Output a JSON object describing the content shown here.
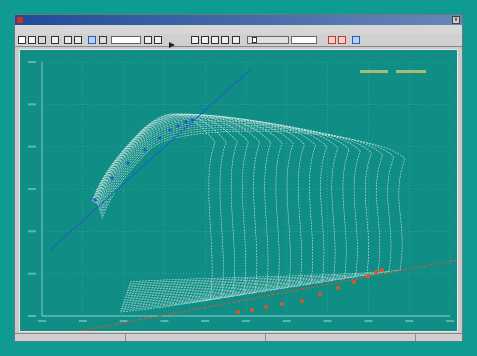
{
  "colors": {
    "desktop": "#0f9a92",
    "plot_bg": "#108d85",
    "grid": "#42b3ab",
    "curve": "#e8f2f0",
    "blue_marker": "#1e5fc4",
    "red_marker": "#e0542c",
    "legend_text": "#d8cd6b"
  },
  "window": {
    "close_glyph": "x"
  },
  "toolbar": {
    "icons": [
      "new-icon",
      "open-icon",
      "save-icon",
      "print-icon",
      "copy-icon",
      "paste-icon",
      "chart-icon",
      "grid-icon",
      "zoom-icon",
      "play-icon",
      "first-icon",
      "prev-icon",
      "next-icon",
      "last-icon",
      "slider-icon",
      "settings-icon",
      "export-icon",
      "help-icon"
    ]
  },
  "chart_data": {
    "type": "line",
    "grid": true,
    "series_count": 18,
    "blue_regression_line": true,
    "red_regression_line": true
  }
}
